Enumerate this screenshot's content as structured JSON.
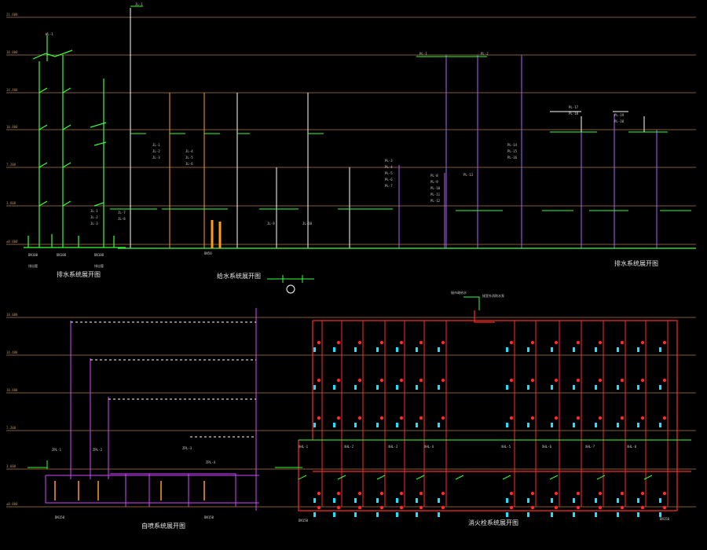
{
  "titles": {
    "drain_system": "排水系统展开图",
    "supply_system": "给水系统展开图",
    "drain_system_right": "排水系统展开图",
    "sprinkler_system": "自喷系统展开图",
    "hydrant_system": "消火栓系统展开图"
  },
  "annotations": {
    "connect_note": "接室外消防水泵",
    "hydrant_source": "接市政给水"
  },
  "colors": {
    "background": "#000000",
    "floor_line": "#b07a4a",
    "drain_pipe": "#39ff3a",
    "supply_pipe": "#ffffff",
    "hot_pipe": "#ff9b1a",
    "vent_pipe": "#b061ff",
    "sprinkler_pipe": "#d047ff",
    "hydrant_pipe": "#ff2a2a",
    "device": "#1ee0ff",
    "text": "#e8e8e8"
  }
}
